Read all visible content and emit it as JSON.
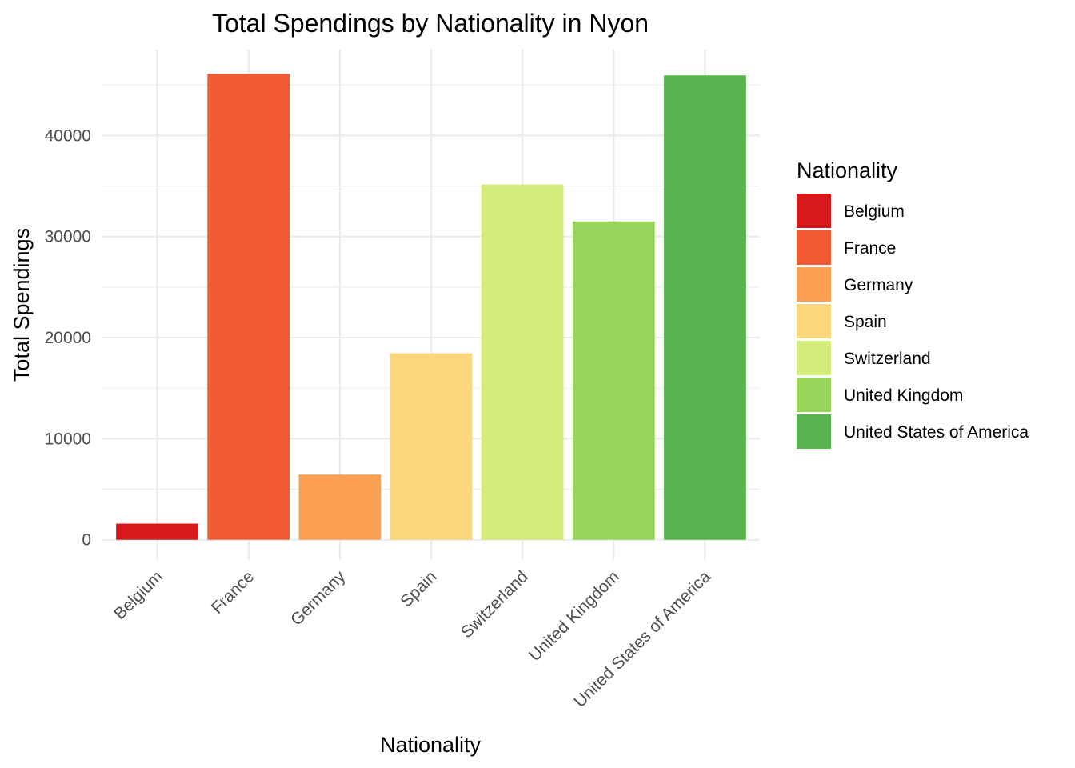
{
  "chart_data": {
    "type": "bar",
    "title": "Total Spendings by Nationality in Nyon",
    "xlabel": "Nationality",
    "ylabel": "Total Spendings",
    "categories": [
      "Belgium",
      "France",
      "Germany",
      "Spain",
      "Switzerland",
      "United Kingdom",
      "United States of America"
    ],
    "values": [
      1600,
      46100,
      6450,
      18450,
      35150,
      31500,
      45950
    ],
    "colors": [
      "#d7191c",
      "#f05a35",
      "#fb9f52",
      "#fcd87c",
      "#d4ed7a",
      "#98d45a",
      "#58b44e"
    ],
    "ylim": [
      -2000,
      48500
    ],
    "yticks": [
      0,
      10000,
      20000,
      30000,
      40000
    ],
    "ytick_labels": [
      "0",
      "10000",
      "20000",
      "30000",
      "40000"
    ],
    "grid": true,
    "legend": {
      "title": "Nationality",
      "placement": "right",
      "entries": [
        "Belgium",
        "France",
        "Germany",
        "Spain",
        "Switzerland",
        "United Kingdom",
        "United States of America"
      ]
    }
  }
}
